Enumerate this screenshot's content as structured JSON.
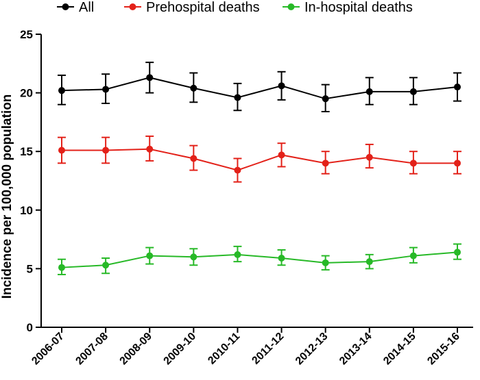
{
  "chart_data": {
    "type": "line",
    "title": "",
    "xlabel": "",
    "ylabel": "Incidence per 100,000 population",
    "ylim": [
      0,
      25
    ],
    "yticks": [
      0,
      5,
      10,
      15,
      20,
      25
    ],
    "categories": [
      "2006-07",
      "2007-08",
      "2008-09",
      "2009-10",
      "2010-11",
      "2011-12",
      "2012-13",
      "2013-14",
      "2014-15",
      "2015-16"
    ],
    "legend_position": "top",
    "series": [
      {
        "name": "All",
        "color": "#000000",
        "values": [
          20.2,
          20.3,
          21.3,
          20.4,
          19.6,
          20.6,
          19.5,
          20.1,
          20.1,
          20.5
        ],
        "error_lower": [
          19.0,
          19.1,
          20.0,
          19.2,
          18.5,
          19.4,
          18.4,
          19.0,
          19.0,
          19.3
        ],
        "error_upper": [
          21.5,
          21.6,
          22.6,
          21.7,
          20.8,
          21.8,
          20.7,
          21.3,
          21.3,
          21.7
        ]
      },
      {
        "name": "Prehospital deaths",
        "color": "#e32119",
        "values": [
          15.1,
          15.1,
          15.2,
          14.4,
          13.4,
          14.7,
          14.0,
          14.5,
          14.0,
          14.0
        ],
        "error_lower": [
          14.0,
          14.0,
          14.2,
          13.4,
          12.4,
          13.7,
          13.1,
          13.6,
          13.1,
          13.1
        ],
        "error_upper": [
          16.2,
          16.2,
          16.3,
          15.5,
          14.4,
          15.7,
          15.0,
          15.6,
          15.0,
          15.0
        ]
      },
      {
        "name": "In-hospital deaths",
        "color": "#27b927",
        "values": [
          5.1,
          5.3,
          6.1,
          6.0,
          6.2,
          5.9,
          5.5,
          5.6,
          6.1,
          6.4
        ],
        "error_lower": [
          4.5,
          4.6,
          5.4,
          5.3,
          5.6,
          5.3,
          4.9,
          5.0,
          5.5,
          5.8
        ],
        "error_upper": [
          5.8,
          5.9,
          6.8,
          6.7,
          6.9,
          6.6,
          6.1,
          6.2,
          6.8,
          7.1
        ]
      }
    ]
  }
}
